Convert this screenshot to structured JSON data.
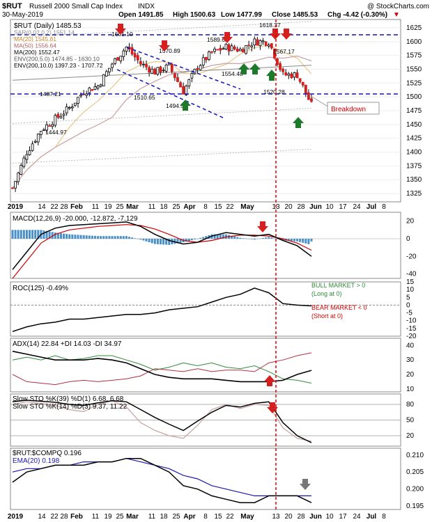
{
  "header": {
    "symbol": "$RUT",
    "name": "Russell 2000 Small Cap Index",
    "exchange": "INDX",
    "date": "30-May-2019",
    "copyright": "@ StockCharts.com",
    "open": "Open 1491.85",
    "high": "High 1500.63",
    "low": "Low 1477.99",
    "close": "Close 1485.53",
    "chg": "Chg -4.42 (-0.30%)",
    "down_marker": "▼"
  },
  "price_panel": {
    "legend": [
      "$RUT (Daily) 1485.53",
      "SAR(0.02,0.2) 1551.14",
      "MA(20) 1545.81",
      "MA(50) 1556.64",
      "MA(200) 1552.47",
      "ENV(200,5.0) 1474.85 - 1630.10",
      "ENV(200,10.0) 1397.23 - 1707.72"
    ],
    "annotations": [
      "1601.10",
      "1570.89",
      "1589.62",
      "1618.37",
      "1567.17",
      "1554.48",
      "1510.65",
      "1494.50",
      "1487.21",
      "1444.97",
      "1520.28"
    ],
    "callout": "Breakdown",
    "y_ticks": [
      "1625",
      "1600",
      "1575",
      "1550",
      "1525",
      "1500",
      "1475",
      "1450",
      "1425",
      "1400",
      "1375",
      "1350",
      "1325"
    ]
  },
  "x_axis": {
    "labels": [
      "2019",
      "14",
      "22",
      "28",
      "Feb",
      "11",
      "19",
      "25",
      "Mar",
      "11",
      "18",
      "25",
      "Apr",
      "8",
      "15",
      "22",
      "May",
      "13",
      "20",
      "28",
      "Jun",
      "10",
      "17",
      "24",
      "Jul",
      "8"
    ]
  },
  "macd_panel": {
    "legend": "MACD(12,26,9) -20.000, -12.872, -7.129",
    "y_ticks": [
      "20",
      "0",
      "-20",
      "-40"
    ]
  },
  "roc_panel": {
    "legend": "ROC(125) -0.49%",
    "notes": [
      "BULL MARKET > 0",
      "(Long at 0)",
      "BEAR MARKET < 0",
      "(Short at 0)"
    ],
    "y_ticks": [
      "15",
      "10",
      "5",
      "0",
      "-5",
      "-10",
      "-15",
      "-20"
    ]
  },
  "adx_panel": {
    "legend": "ADX(14) 22.84 +DI 14.03 -DI 34.97",
    "y_ticks": [
      "40",
      "30",
      "20",
      "10"
    ]
  },
  "sto_panel": {
    "legend1": "Slow STO %K(39) %D(1) 6.68, 6.68",
    "legend2": "Slow STO %K(14) %D(3) 9.37, 11.22",
    "y_ticks": [
      "80",
      "50",
      "20"
    ]
  },
  "ratio_panel": {
    "legend1": "$RUT:$COMPQ 0.196",
    "legend2": "EMA(20) 0.198",
    "y_ticks": [
      "0.210",
      "0.205",
      "0.200",
      "0.195"
    ]
  },
  "colors": {
    "price": "#000000",
    "ma20": "#e8c88a",
    "ma50": "#c9a0a0",
    "ma200": "#8a8a8a",
    "macd_hist": "#4a90c8",
    "signal": "#cc0000",
    "neg_di": "#b03040",
    "pos_di": "#2e8b3a",
    "annotation_red": "#d62020",
    "annotation_green": "#1d7a2a",
    "trend_blue": "#1010c0",
    "ema": "#1818b0",
    "bull_text": "#2e8b3a",
    "bear_text": "#cc0000"
  },
  "chart_data": [
    {
      "type": "candlestick",
      "title": "Russell 2000 Small Cap Index",
      "ylim": [
        1310,
        1640
      ],
      "x": [
        "Jan 2",
        "Jan 7",
        "Jan 14",
        "Jan 22",
        "Jan 28",
        "Feb 4",
        "Feb 11",
        "Feb 19",
        "Feb 25",
        "Mar 4",
        "Mar 11",
        "Mar 18",
        "Mar 25",
        "Apr 1",
        "Apr 8",
        "Apr 15",
        "Apr 22",
        "Apr 29",
        "May 6",
        "May 13",
        "May 20",
        "May 28"
      ],
      "close": [
        1335,
        1400,
        1440,
        1460,
        1480,
        1510,
        1520,
        1560,
        1590,
        1560,
        1545,
        1555,
        1510,
        1555,
        1580,
        1590,
        1585,
        1600,
        1600,
        1540,
        1540,
        1485
      ],
      "horizontal_levels": [
        1615,
        1503
      ]
    },
    {
      "type": "line",
      "title": "MACD(12,26,9)",
      "ylim": [
        -45,
        30
      ],
      "series": [
        {
          "name": "MACD",
          "values": [
            -35,
            -15,
            5,
            12,
            15,
            16,
            17,
            18,
            19,
            14,
            5,
            -2,
            -6,
            -4,
            3,
            7,
            5,
            3,
            5,
            -2,
            -8,
            -20
          ]
        },
        {
          "name": "Signal",
          "values": [
            -45,
            -25,
            -5,
            5,
            10,
            12,
            14,
            15,
            16,
            15,
            11,
            5,
            -2,
            -4,
            -2,
            2,
            4,
            4,
            3,
            0,
            -5,
            -13
          ]
        }
      ]
    },
    {
      "type": "line",
      "title": "ROC(125)",
      "ylim": [
        -20,
        15
      ],
      "series": [
        {
          "name": "ROC(125)",
          "values": [
            -17,
            -14,
            -12,
            -11,
            -9,
            -9,
            -8,
            -7,
            -6,
            -6,
            -5,
            -3,
            -2,
            -1,
            2,
            5,
            7,
            11,
            8,
            1,
            0,
            -0.49
          ]
        }
      ]
    },
    {
      "type": "line",
      "title": "ADX(14)",
      "ylim": [
        8,
        45
      ],
      "series": [
        {
          "name": "ADX",
          "values": [
            36,
            34,
            32,
            30,
            30,
            30,
            31,
            30,
            28,
            24,
            20,
            18,
            17,
            17,
            17,
            16,
            15,
            15,
            15,
            16,
            20,
            22.84
          ]
        },
        {
          "name": "+DI",
          "values": [
            30,
            32,
            30,
            33,
            30,
            31,
            33,
            33,
            30,
            27,
            23,
            25,
            28,
            26,
            28,
            25,
            24,
            26,
            22,
            17,
            16,
            14.03
          ]
        },
        {
          "name": "-DI",
          "values": [
            20,
            15,
            14,
            13,
            15,
            16,
            15,
            16,
            17,
            19,
            24,
            23,
            22,
            24,
            22,
            23,
            23,
            22,
            28,
            30,
            33,
            34.97
          ]
        }
      ]
    },
    {
      "type": "line",
      "title": "Slow STO",
      "ylim": [
        0,
        100
      ],
      "series": [
        {
          "name": "%K(39)",
          "values": [
            85,
            88,
            86,
            84,
            80,
            78,
            83,
            87,
            85,
            70,
            55,
            42,
            30,
            48,
            65,
            78,
            75,
            82,
            85,
            45,
            20,
            6.68
          ]
        },
        {
          "name": "%K(14)",
          "values": [
            80,
            85,
            82,
            78,
            70,
            66,
            80,
            87,
            75,
            45,
            30,
            20,
            15,
            40,
            70,
            80,
            72,
            80,
            78,
            35,
            15,
            9.37
          ]
        }
      ]
    },
    {
      "type": "line",
      "title": "$RUT:$COMPQ",
      "ylim": [
        0.194,
        0.212
      ],
      "series": [
        {
          "name": "$RUT:$COMPQ",
          "values": [
            0.202,
            0.205,
            0.206,
            0.207,
            0.207,
            0.207,
            0.208,
            0.208,
            0.209,
            0.209,
            0.207,
            0.205,
            0.201,
            0.2,
            0.198,
            0.197,
            0.196,
            0.196,
            0.198,
            0.198,
            0.198,
            0.196
          ]
        },
        {
          "name": "EMA(20)",
          "values": [
            0.205,
            0.206,
            0.206,
            0.207,
            0.207,
            0.208,
            0.208,
            0.208,
            0.209,
            0.208,
            0.207,
            0.206,
            0.204,
            0.203,
            0.201,
            0.2,
            0.199,
            0.198,
            0.198,
            0.198,
            0.198,
            0.198
          ]
        }
      ]
    }
  ]
}
